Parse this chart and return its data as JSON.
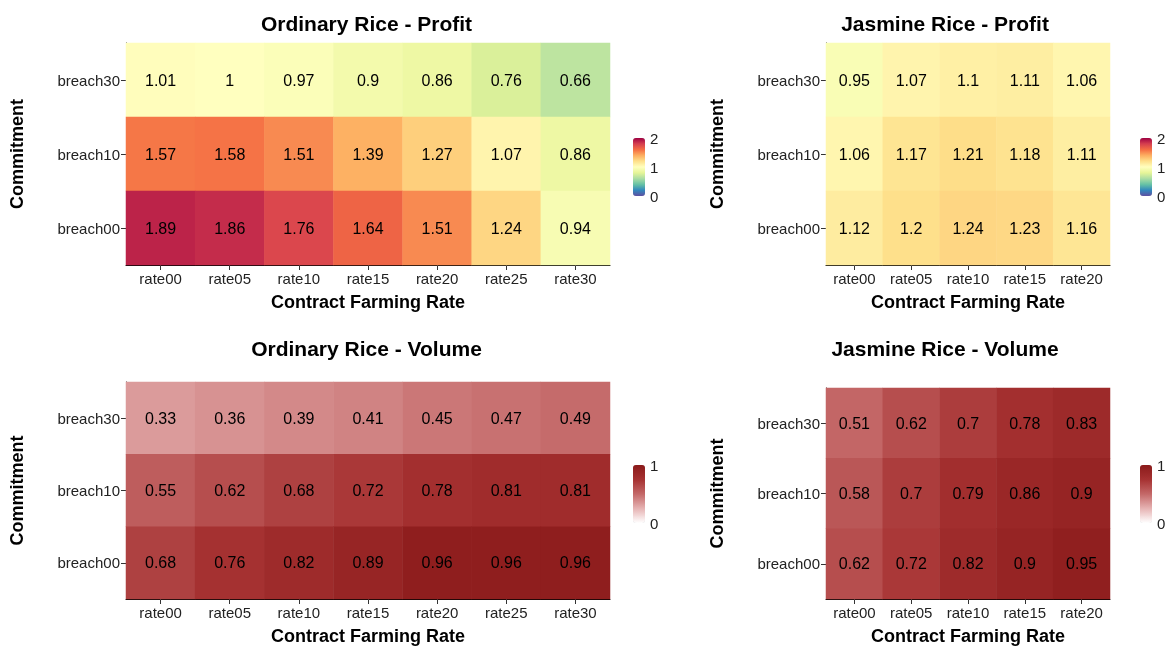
{
  "chart_data": [
    {
      "type": "heatmap",
      "title": "Ordinary Rice - Profit",
      "xlabel": "Contract Farming Rate",
      "ylabel": "Commitment",
      "categories": [
        "rate00",
        "rate05",
        "rate10",
        "rate15",
        "rate20",
        "rate25",
        "rate30"
      ],
      "y_categories": [
        "breach30",
        "breach10",
        "breach00"
      ],
      "cells": [
        [
          1.01,
          1,
          0.97,
          0.9,
          0.86,
          0.76,
          0.66
        ],
        [
          1.57,
          1.58,
          1.51,
          1.39,
          1.27,
          1.07,
          0.86
        ],
        [
          1.89,
          1.86,
          1.76,
          1.64,
          1.51,
          1.24,
          0.94
        ]
      ],
      "clim": [
        0,
        2
      ],
      "cticks": [
        0,
        1,
        2
      ],
      "data_labels": true
    },
    {
      "type": "heatmap",
      "title": "Jasmine Rice - Profit",
      "xlabel": "Contract Farming Rate",
      "ylabel": "Commitment",
      "categories": [
        "rate00",
        "rate05",
        "rate10",
        "rate15",
        "rate20"
      ],
      "y_categories": [
        "breach30",
        "breach10",
        "breach00"
      ],
      "cells": [
        [
          0.95,
          1.07,
          1.1,
          1.11,
          1.06
        ],
        [
          1.06,
          1.17,
          1.21,
          1.18,
          1.11
        ],
        [
          1.12,
          1.2,
          1.24,
          1.23,
          1.16
        ]
      ],
      "clim": [
        0,
        2
      ],
      "cticks": [
        0,
        1,
        2
      ],
      "data_labels": true
    },
    {
      "type": "heatmap",
      "title": "Ordinary Rice - Volume",
      "xlabel": "Contract Farming Rate",
      "ylabel": "Commitment",
      "categories": [
        "rate00",
        "rate05",
        "rate10",
        "rate15",
        "rate20",
        "rate25",
        "rate30"
      ],
      "y_categories": [
        "breach30",
        "breach10",
        "breach00"
      ],
      "cells": [
        [
          0.33,
          0.36,
          0.39,
          0.41,
          0.45,
          0.47,
          0.49
        ],
        [
          0.55,
          0.62,
          0.68,
          0.72,
          0.78,
          0.81,
          0.81
        ],
        [
          0.68,
          0.76,
          0.82,
          0.89,
          0.96,
          0.96,
          0.96
        ]
      ],
      "clim": [
        0,
        1
      ],
      "cticks": [
        0,
        1
      ],
      "data_labels": true
    },
    {
      "type": "heatmap",
      "title": "Jasmine Rice - Volume",
      "xlabel": "Contract Farming Rate",
      "ylabel": "Commitment",
      "categories": [
        "rate00",
        "rate05",
        "rate10",
        "rate15",
        "rate20"
      ],
      "y_categories": [
        "breach30",
        "breach10",
        "breach00"
      ],
      "cells": [
        [
          0.51,
          0.62,
          0.7,
          0.78,
          0.83
        ],
        [
          0.58,
          0.7,
          0.79,
          0.86,
          0.9
        ],
        [
          0.62,
          0.72,
          0.82,
          0.9,
          0.95
        ]
      ],
      "clim": [
        0,
        1
      ],
      "cticks": [
        0,
        1
      ],
      "data_labels": true
    }
  ]
}
